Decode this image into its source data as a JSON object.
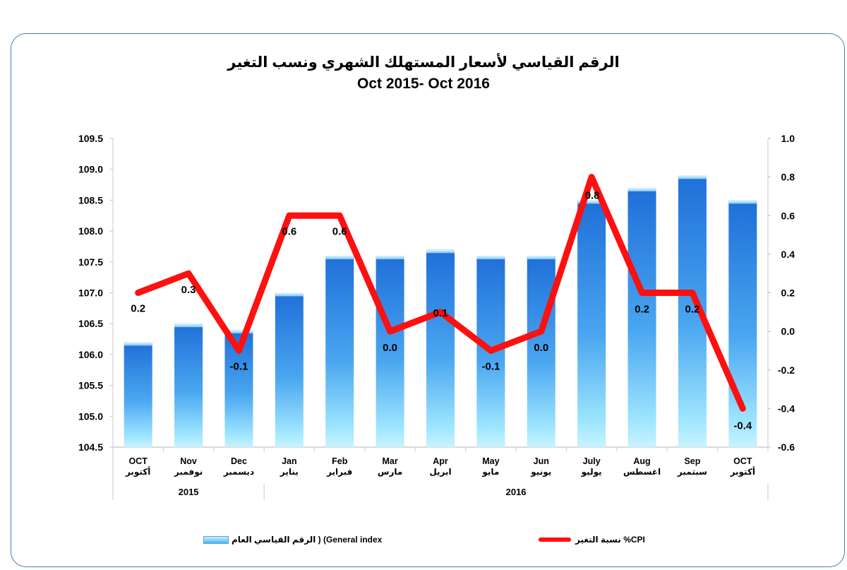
{
  "title_ar": "الرقم القياسي لأسعار المستهلك الشهري ونسب التغير",
  "title_en": "Oct 2015- Oct 2016",
  "legend": {
    "bar_label": "General index) ( الرقم القياسي العام",
    "line_label": "CPI% نسبة التغير"
  },
  "colors": {
    "bar_top": "#1f6fd8",
    "bar_bottom": "#9fe6ff",
    "line": "#ff0f0f",
    "frame": "#4a78c0"
  },
  "chart_data": {
    "type": "bar+line",
    "categories_en": [
      "OCT",
      "Nov",
      "Dec",
      "Jan",
      "Feb",
      "Mar",
      "Apr",
      "May",
      "Jun",
      "July",
      "Aug",
      "Sep",
      "OCT"
    ],
    "categories_ar": [
      "أكتوبر",
      "نوفمبر",
      "ديسمبر",
      "يناير",
      "فبراير",
      "مارس",
      "ابريل",
      "مايو",
      "يونيو",
      "يوليو",
      "اغسطس",
      "سبتمبر",
      "أكتوبر"
    ],
    "years": [
      {
        "label": "2015",
        "span": [
          0,
          2
        ]
      },
      {
        "label": "2016",
        "span": [
          3,
          12
        ]
      }
    ],
    "series": [
      {
        "type": "bar",
        "axis": "left",
        "values": [
          106.2,
          106.5,
          106.4,
          107.0,
          107.6,
          107.6,
          107.7,
          107.6,
          107.6,
          108.5,
          108.7,
          108.9,
          108.5
        ]
      },
      {
        "type": "line",
        "axis": "right",
        "values": [
          0.2,
          0.3,
          -0.1,
          0.6,
          0.6,
          0.0,
          0.1,
          -0.1,
          0.0,
          0.8,
          0.2,
          0.2,
          -0.4
        ],
        "data_labels": [
          "0.2",
          "0.3",
          "-0.1",
          "0.6",
          "0.6",
          "0.0",
          "0.1",
          "-0.1",
          "0.0",
          "0.8",
          "0.2",
          "0.2",
          "-0.4"
        ]
      }
    ],
    "y_left": {
      "min": 104.5,
      "max": 109.5,
      "step": 0.5,
      "tick_labels": [
        "104.5",
        "105.0",
        "105.5",
        "106.0",
        "106.5",
        "107.0",
        "107.5",
        "108.0",
        "108.5",
        "109.0",
        "109.5"
      ]
    },
    "y_right": {
      "min": -0.6,
      "max": 1.0,
      "step": 0.2,
      "tick_labels": [
        "-0.6",
        "-0.4",
        "-0.2",
        "0.0",
        "0.2",
        "0.4",
        "0.6",
        "0.8",
        "1.0"
      ]
    },
    "grid": false,
    "legend_position": "bottom"
  }
}
